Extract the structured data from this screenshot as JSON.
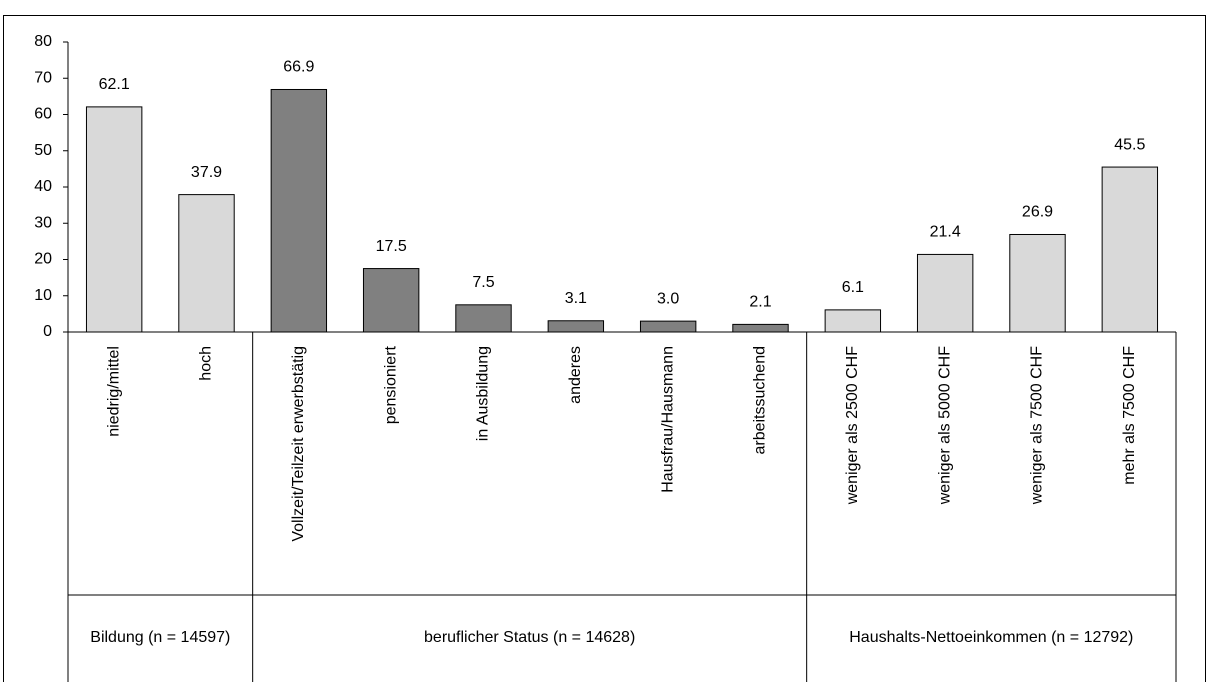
{
  "chart_data": {
    "type": "bar",
    "ylim": [
      0,
      80
    ],
    "yticks": [
      0,
      10,
      20,
      30,
      40,
      50,
      60,
      70,
      80
    ],
    "groups": [
      {
        "name": "Bildung (n = 14597)",
        "color": "#d9d9d9",
        "categories": [
          "niedrig/mittel",
          "hoch"
        ],
        "values": [
          62.1,
          37.9
        ],
        "value_labels": [
          "62.1",
          "37.9"
        ]
      },
      {
        "name": "beruflicher Status (n = 14628)",
        "color": "#808080",
        "categories": [
          "Vollzeit/Teilzeit erwerbstätig",
          "pensioniert",
          "in Ausbildung",
          "anderes",
          "Hausfrau/Hausmann",
          "arbeitssuchend"
        ],
        "values": [
          66.9,
          17.5,
          7.5,
          3.1,
          3.0,
          2.1
        ],
        "value_labels": [
          "66.9",
          "17.5",
          "7.5",
          "3.1",
          "3.0",
          "2.1"
        ]
      },
      {
        "name": "Haushalts-Nettoeinkommen (n = 12792)",
        "color": "#d9d9d9",
        "categories": [
          "weniger als 2500 CHF",
          "weniger als 5000 CHF",
          "weniger als 7500 CHF",
          "mehr als 7500 CHF"
        ],
        "values": [
          6.1,
          21.4,
          26.9,
          45.5
        ],
        "value_labels": [
          "6.1",
          "21.4",
          "26.9",
          "45.5"
        ]
      }
    ]
  }
}
